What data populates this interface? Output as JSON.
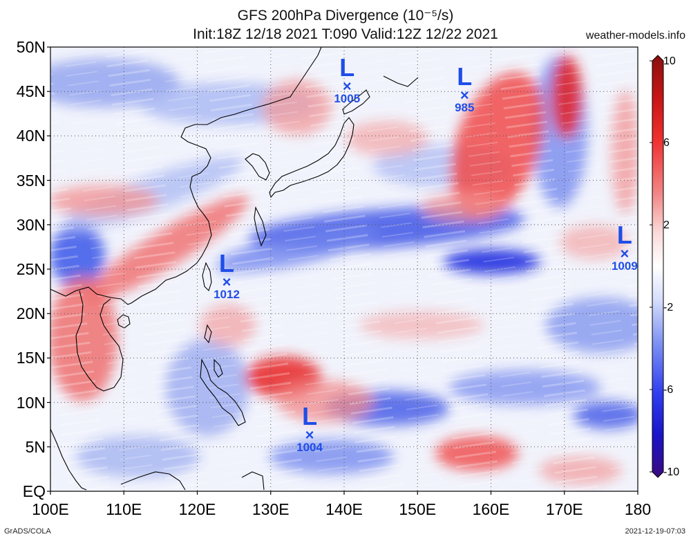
{
  "title": {
    "line1": "GFS 200hPa Divergence (10⁻⁵/s)",
    "line2": "Init:18Z 12/18 2021 T:090 Valid:12Z 12/22 2021"
  },
  "source": "weather-models.info",
  "footer": {
    "left": "GrADS/COLA",
    "right": "2021-12-19-07:03"
  },
  "axes": {
    "lat_labels": [
      "50N",
      "45N",
      "40N",
      "35N",
      "30N",
      "25N",
      "20N",
      "15N",
      "10N",
      "5N",
      "EQ"
    ],
    "lon_labels": [
      "100E",
      "110E",
      "120E",
      "130E",
      "140E",
      "150E",
      "160E",
      "170E",
      "180"
    ],
    "lat_range": [
      0,
      50
    ],
    "lon_range": [
      100,
      180
    ]
  },
  "colorbar": {
    "labels": [
      "10",
      "6",
      "2",
      "-2",
      "-6",
      "-10"
    ],
    "colors": [
      "#3a0a8a",
      "#1c20e0",
      "#3f5cf5",
      "#8fa3f2",
      "#ffffff",
      "#f2a3a3",
      "#f04848",
      "#d91a1a",
      "#8a1010"
    ]
  },
  "lows": [
    {
      "marker": "L",
      "symbol": "×",
      "pressure": "1005",
      "lon": 140.4,
      "lat": 45.6
    },
    {
      "marker": "L",
      "symbol": "×",
      "pressure": "985",
      "lon": 156.4,
      "lat": 44.6
    },
    {
      "marker": "L",
      "symbol": "×",
      "pressure": "1012",
      "lon": 124.0,
      "lat": 23.6
    },
    {
      "marker": "L",
      "symbol": "×",
      "pressure": "1009",
      "lon": 178.2,
      "lat": 26.8
    },
    {
      "marker": "L",
      "symbol": "×",
      "pressure": "1004",
      "lon": 135.3,
      "lat": 6.4
    }
  ]
}
